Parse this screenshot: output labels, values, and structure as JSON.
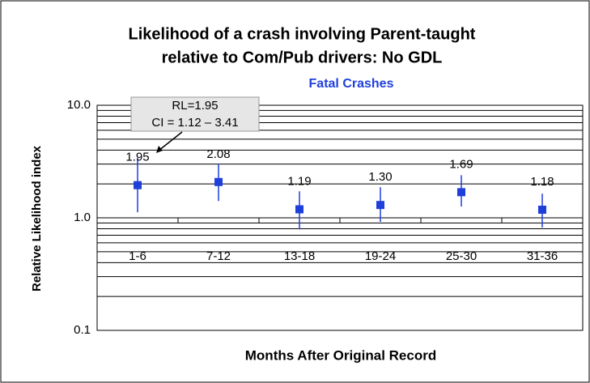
{
  "chart_data": {
    "type": "errorbar",
    "title": [
      "Likelihood of a crash involving Parent-taught",
      "relative to Com/Pub drivers: No GDL"
    ],
    "subtitle": "Fatal Crashes",
    "xlabel": "Months After Original Record",
    "ylabel": "Relative Likelihood index",
    "categories": [
      "1-6",
      "7-12",
      "13-18",
      "19-24",
      "25-30",
      "31-36"
    ],
    "values": [
      1.95,
      2.08,
      1.19,
      1.3,
      1.69,
      1.18
    ],
    "value_labels": [
      "1.95",
      "2.08",
      "1.19",
      "1.30",
      "1.69",
      "1.18"
    ],
    "lower": [
      1.12,
      1.41,
      0.79,
      0.92,
      1.26,
      0.82
    ],
    "upper": [
      3.41,
      3.01,
      1.72,
      1.87,
      2.39,
      1.64
    ],
    "color": "#1f3fdb",
    "log_scale": true,
    "ylim": [
      0.1,
      10
    ],
    "yticks": [
      {
        "value": 0.1,
        "label": "0.1"
      },
      {
        "value": 1,
        "label": "1.0"
      },
      {
        "value": 10,
        "label": "10.0"
      }
    ],
    "minor_grid": [
      0.2,
      0.3,
      0.4,
      0.5,
      0.6,
      0.7,
      0.8,
      0.9,
      2,
      3,
      4,
      5,
      6,
      7,
      8,
      9
    ],
    "grid": true,
    "annotation": [
      "RL=1.95",
      "CI = 1.12 – 3.41"
    ]
  }
}
